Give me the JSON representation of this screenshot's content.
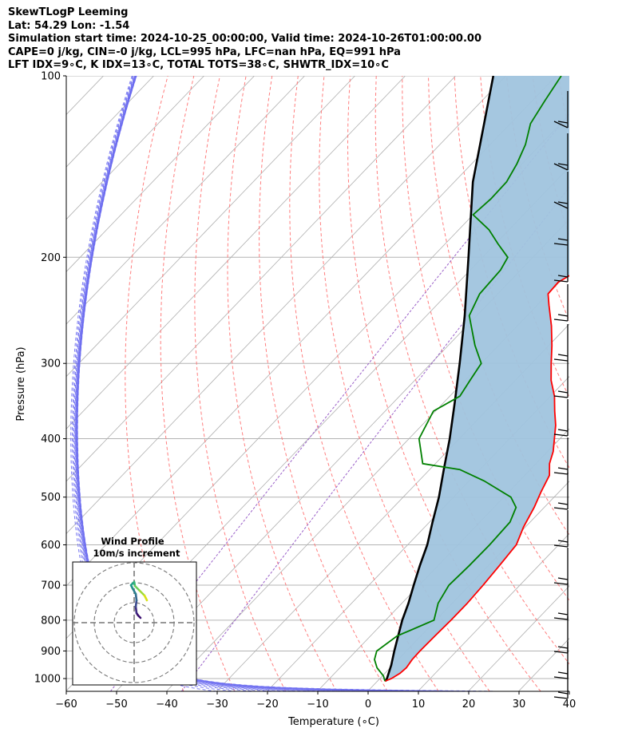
{
  "header": {
    "lines": [
      "SkewTLogP Leeming",
      "Lat: 54.29   Lon: -1.54",
      "Simulation start time: 2024-10-25_00:00:00, Valid time: 2024-10-26T01:00:00.00",
      "CAPE=0 j/kg, CIN=-0 j/kg, LCL=995 hPa, LFC=nan hPa, EQ=991 hPa",
      "LFT IDX=9∘C, K IDX=13∘C, TOTAL TOTS=38∘C, SHWTR_IDX=10∘C"
    ]
  },
  "chart_data": {
    "type": "line",
    "subtype": "skew-t log-p",
    "xlabel": "Temperature (∘C)",
    "ylabel": "Pressure (hPa)",
    "xlim": [
      -60,
      40
    ],
    "ylim": [
      1050,
      100
    ],
    "y_scale": "log",
    "x_ticks": [
      -60,
      -50,
      -40,
      -30,
      -20,
      -10,
      0,
      10,
      20,
      30,
      40
    ],
    "x_tick_labels": [
      "−60",
      "−50",
      "−40",
      "−30",
      "−20",
      "−10",
      "0",
      "10",
      "20",
      "30",
      "40"
    ],
    "y_ticks": [
      1000,
      900,
      800,
      700,
      600,
      500,
      400,
      300,
      200,
      100
    ],
    "y_tick_labels": [
      "1000",
      "900",
      "800",
      "700",
      "600",
      "500",
      "400",
      "300",
      "200",
      "100"
    ],
    "grid": true,
    "colors": {
      "temperature": "#ff0000",
      "dewpoint": "#008000",
      "parcel": "#000000",
      "shade": "#a0c4de",
      "dry_adiabat": "#ff7070",
      "moist_adiabat": "#6c6cf0",
      "mixing_ratio": "#9a60c8",
      "isotherm": "#b0b0b0"
    },
    "series": [
      {
        "key": "temperature",
        "pressure": [
          1010,
          1000,
          980,
          960,
          930,
          900,
          850,
          800,
          750,
          700,
          650,
          600,
          560,
          520,
          490,
          460,
          440,
          420,
          400,
          380,
          360,
          340,
          320,
          300,
          280,
          260,
          240,
          230,
          220,
          210,
          200,
          190,
          180,
          170,
          160,
          150,
          140,
          130,
          120,
          110,
          100
        ],
        "temp": [
          11.5,
          12.3,
          13.0,
          13.2,
          12.8,
          12.7,
          12.8,
          13.0,
          13.0,
          12.7,
          12.2,
          11.6,
          9.6,
          8.0,
          6.4,
          4.9,
          2.7,
          1.1,
          -1.1,
          -3.4,
          -6.3,
          -9.2,
          -12.9,
          -16.1,
          -19.4,
          -23.2,
          -27.7,
          -30.0,
          -30.2,
          -28.4,
          -27.7,
          -27.6,
          -27.4,
          -27.2,
          -28.6,
          -31.2,
          -33.5,
          -36.9,
          -39.7,
          -42.9,
          -46.0
        ]
      },
      {
        "key": "dewpoint",
        "pressure": [
          1010,
          990,
          960,
          930,
          900,
          850,
          800,
          750,
          700,
          650,
          600,
          550,
          520,
          500,
          470,
          450,
          440,
          400,
          360,
          340,
          320,
          300,
          280,
          250,
          230,
          210,
          200,
          190,
          180,
          170,
          160,
          150,
          140,
          130,
          120,
          110,
          100
        ],
        "temp": [
          11.5,
          10.2,
          7.4,
          5.3,
          4.1,
          5.3,
          9.6,
          7.2,
          5.9,
          6.2,
          6.3,
          6.0,
          4.4,
          1.4,
          -7.0,
          -14.0,
          -22.5,
          -28.0,
          -30.4,
          -28.0,
          -29.0,
          -30.0,
          -34.7,
          -41.5,
          -43.6,
          -44.0,
          -45.0,
          -49.5,
          -54.0,
          -60.0,
          -59.5,
          -59.6,
          -61.0,
          -63.0,
          -66.0,
          -67.5,
          -69.0
        ]
      },
      {
        "key": "parcel",
        "pressure": [
          1010,
          1000,
          950,
          900,
          850,
          800,
          750,
          700,
          650,
          600,
          550,
          500,
          450,
          400,
          350,
          300,
          250,
          200,
          150,
          100
        ],
        "temp": [
          11.6,
          11.4,
          9.7,
          7.6,
          5.5,
          3.3,
          1.3,
          -1.1,
          -3.6,
          -6.1,
          -9.4,
          -12.9,
          -17.2,
          -21.9,
          -27.6,
          -34.3,
          -42.4,
          -52.8,
          -66.3,
          -82.5
        ]
      }
    ],
    "inset": {
      "title": "Wind Profile",
      "subtitle": "10m/s increment"
    }
  }
}
